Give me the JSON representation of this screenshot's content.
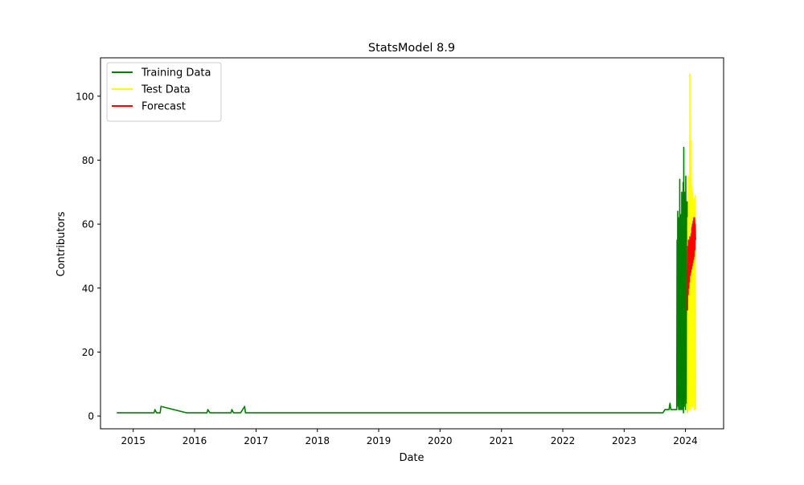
{
  "chart_data": {
    "type": "line",
    "title": "StatsModel 8.9",
    "xlabel": "Date",
    "ylabel": "Contributors",
    "x_ticks": [
      "2015",
      "2016",
      "2017",
      "2018",
      "2019",
      "2020",
      "2021",
      "2022",
      "2023",
      "2024"
    ],
    "y_ticks": [
      0,
      20,
      40,
      60,
      80,
      100
    ],
    "xlim": [
      "2014-06-20",
      "2024-08-15"
    ],
    "ylim": [
      -4,
      112
    ],
    "grid": false,
    "legend_position": "top-left",
    "series": [
      {
        "name": "Training Data",
        "color": "#008000",
        "points": [
          [
            "2014-09-25",
            1
          ],
          [
            "2015-05-05",
            1
          ],
          [
            "2015-05-10",
            2
          ],
          [
            "2015-05-20",
            1
          ],
          [
            "2015-06-10",
            1
          ],
          [
            "2015-06-15",
            3
          ],
          [
            "2015-11-15",
            1
          ],
          [
            "2016-03-15",
            1
          ],
          [
            "2016-03-20",
            2
          ],
          [
            "2016-04-01",
            1
          ],
          [
            "2016-08-05",
            1
          ],
          [
            "2016-08-10",
            2
          ],
          [
            "2016-08-20",
            1
          ],
          [
            "2016-10-01",
            1
          ],
          [
            "2016-10-25",
            3
          ],
          [
            "2016-10-30",
            1
          ],
          [
            "2023-08-20",
            1
          ],
          [
            "2023-09-01",
            2
          ],
          [
            "2023-09-25",
            2
          ],
          [
            "2023-10-01",
            4
          ],
          [
            "2023-10-06",
            2
          ],
          [
            "2023-10-25",
            2
          ],
          [
            "2023-11-10",
            2
          ],
          [
            "2023-11-12",
            55
          ],
          [
            "2023-11-14",
            8
          ],
          [
            "2023-11-16",
            64
          ],
          [
            "2023-11-18",
            3
          ],
          [
            "2023-11-20",
            62
          ],
          [
            "2023-11-22",
            2
          ],
          [
            "2023-11-24",
            60
          ],
          [
            "2023-11-26",
            5
          ],
          [
            "2023-11-28",
            74
          ],
          [
            "2023-11-30",
            2
          ],
          [
            "2023-12-02",
            58
          ],
          [
            "2023-12-04",
            6
          ],
          [
            "2023-12-06",
            63
          ],
          [
            "2023-12-08",
            2
          ],
          [
            "2023-12-10",
            70
          ],
          [
            "2023-12-12",
            4
          ],
          [
            "2023-12-14",
            68
          ],
          [
            "2023-12-16",
            2
          ],
          [
            "2023-12-18",
            73
          ],
          [
            "2023-12-20",
            1
          ],
          [
            "2023-12-22",
            84
          ],
          [
            "2023-12-24",
            3
          ],
          [
            "2023-12-26",
            70
          ],
          [
            "2023-12-28",
            5
          ],
          [
            "2023-12-30",
            65
          ],
          [
            "2024-01-01",
            2
          ],
          [
            "2024-01-03",
            75
          ],
          [
            "2024-01-05",
            8
          ],
          [
            "2024-01-07",
            60
          ],
          [
            "2024-01-09",
            4
          ],
          [
            "2024-01-11",
            67
          ],
          [
            "2024-01-13",
            1
          ]
        ]
      },
      {
        "name": "Test Data",
        "color": "#ffff00",
        "points": [
          [
            "2024-01-13",
            1
          ],
          [
            "2024-01-15",
            62
          ],
          [
            "2024-01-17",
            5
          ],
          [
            "2024-01-19",
            75
          ],
          [
            "2024-01-21",
            2
          ],
          [
            "2024-01-23",
            70
          ],
          [
            "2024-01-25",
            4
          ],
          [
            "2024-01-27",
            107
          ],
          [
            "2024-01-29",
            2
          ],
          [
            "2024-01-31",
            75
          ],
          [
            "2024-02-02",
            6
          ],
          [
            "2024-02-04",
            86
          ],
          [
            "2024-02-06",
            3
          ],
          [
            "2024-02-08",
            72
          ],
          [
            "2024-02-10",
            5
          ],
          [
            "2024-02-12",
            70
          ],
          [
            "2024-02-14",
            3
          ],
          [
            "2024-02-16",
            65
          ],
          [
            "2024-02-18",
            8
          ],
          [
            "2024-02-20",
            68
          ],
          [
            "2024-02-22",
            2
          ],
          [
            "2024-02-24",
            64
          ],
          [
            "2024-02-26",
            4
          ],
          [
            "2024-02-28",
            69
          ],
          [
            "2024-03-01",
            2
          ]
        ]
      },
      {
        "name": "Forecast",
        "color": "#ff0000",
        "points": [
          [
            "2024-01-13",
            33
          ],
          [
            "2024-01-15",
            53
          ],
          [
            "2024-01-17",
            38
          ],
          [
            "2024-01-19",
            55
          ],
          [
            "2024-01-21",
            40
          ],
          [
            "2024-01-23",
            52
          ],
          [
            "2024-01-25",
            42
          ],
          [
            "2024-01-27",
            56
          ],
          [
            "2024-01-29",
            44
          ],
          [
            "2024-01-31",
            54
          ],
          [
            "2024-02-02",
            45
          ],
          [
            "2024-02-04",
            57
          ],
          [
            "2024-02-06",
            46
          ],
          [
            "2024-02-08",
            59
          ],
          [
            "2024-02-10",
            47
          ],
          [
            "2024-02-12",
            60
          ],
          [
            "2024-02-14",
            48
          ],
          [
            "2024-02-16",
            61
          ],
          [
            "2024-02-18",
            49
          ],
          [
            "2024-02-20",
            62
          ],
          [
            "2024-02-22",
            50
          ],
          [
            "2024-02-24",
            62
          ],
          [
            "2024-02-26",
            52
          ],
          [
            "2024-02-28",
            60
          ],
          [
            "2024-03-01",
            55
          ]
        ]
      }
    ]
  }
}
